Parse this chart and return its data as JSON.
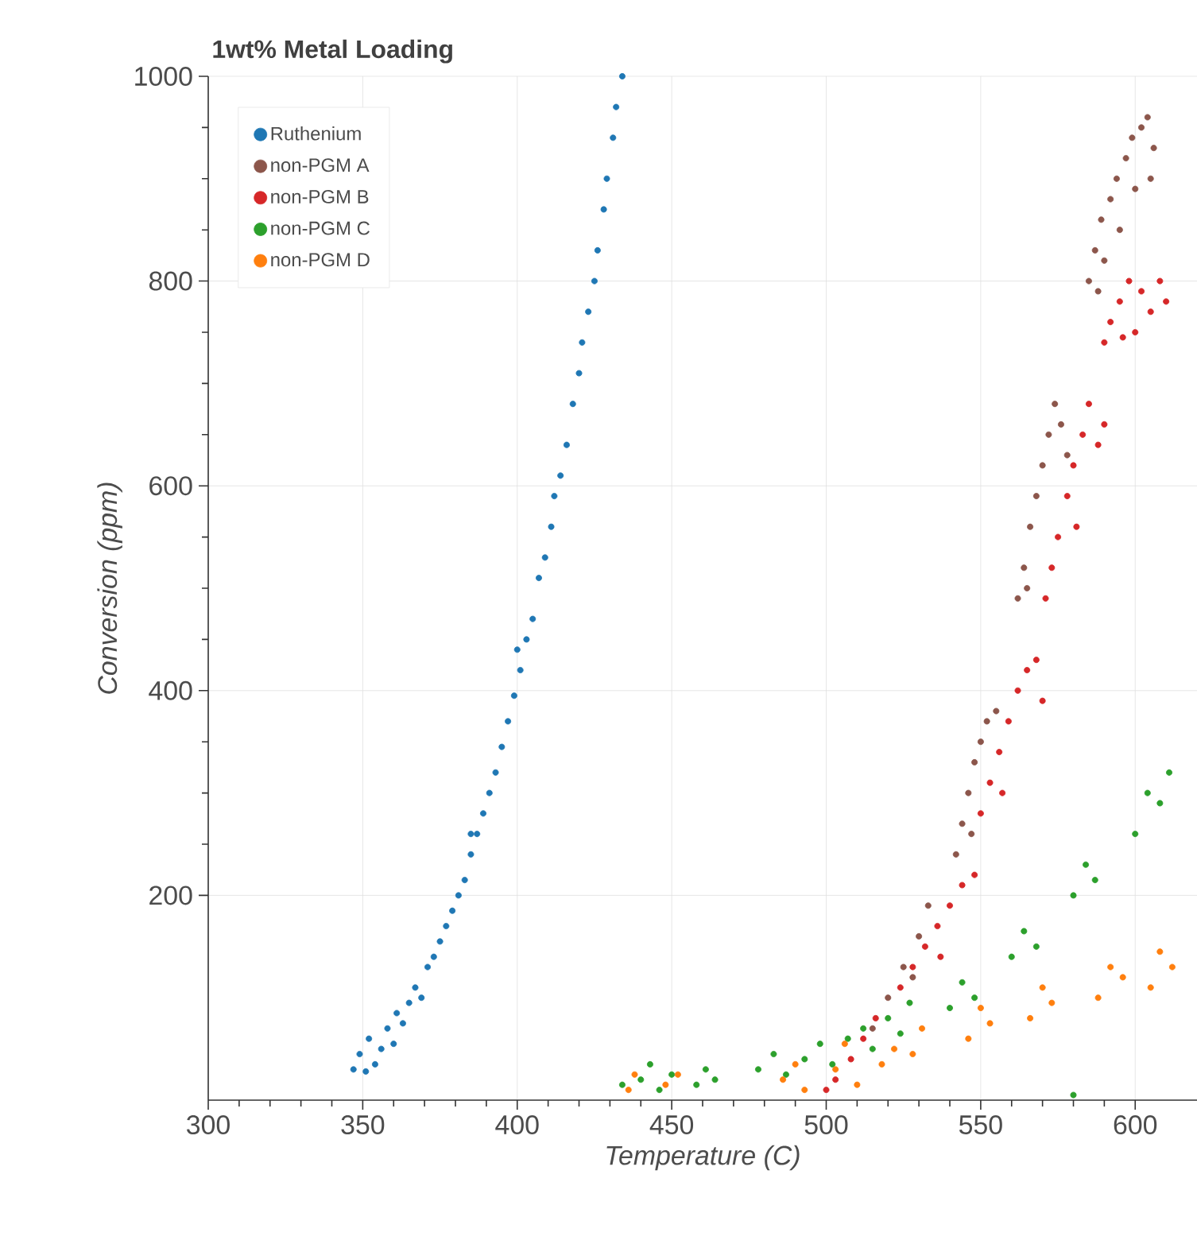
{
  "chart_data": {
    "type": "scatter",
    "title": "1wt% Metal Loading",
    "xlabel": "Temperature (C)",
    "ylabel": "Conversion (ppm)",
    "xlim": [
      300,
      620
    ],
    "ylim": [
      0,
      1000
    ],
    "xticks": [
      300,
      350,
      400,
      450,
      500,
      550,
      600
    ],
    "yticks": [
      200,
      400,
      600,
      800,
      1000
    ],
    "grid": true,
    "legend": "top left",
    "marker": "circle",
    "series": [
      {
        "name": "Ruthenium",
        "color": "#1f77b4",
        "x": [
          347,
          349,
          351,
          352,
          354,
          356,
          358,
          360,
          361,
          363,
          365,
          367,
          369,
          371,
          373,
          375,
          377,
          379,
          381,
          383,
          385,
          387,
          389,
          391,
          393,
          395,
          397,
          399,
          401,
          403,
          405,
          407,
          409,
          411,
          412,
          414,
          416,
          418,
          420,
          421,
          423,
          425,
          426,
          428,
          429,
          431,
          432,
          434,
          400,
          385
        ],
        "values": [
          30,
          45,
          28,
          60,
          35,
          50,
          70,
          55,
          85,
          75,
          95,
          110,
          100,
          130,
          140,
          155,
          170,
          185,
          200,
          215,
          240,
          260,
          280,
          300,
          320,
          345,
          370,
          395,
          420,
          450,
          470,
          510,
          530,
          560,
          590,
          610,
          640,
          680,
          710,
          740,
          770,
          800,
          830,
          870,
          900,
          940,
          970,
          1000,
          440,
          260
        ]
      },
      {
        "name": "non-PGM A",
        "color": "#8c564b",
        "x": [
          585,
          587,
          589,
          590,
          592,
          594,
          595,
          597,
          599,
          600,
          602,
          604,
          606,
          605,
          588,
          562,
          564,
          566,
          568,
          570,
          572,
          574,
          576,
          565,
          578,
          542,
          544,
          546,
          548,
          550,
          552,
          555,
          547,
          515,
          520,
          525,
          530,
          533,
          528
        ],
        "values": [
          800,
          830,
          860,
          820,
          880,
          900,
          850,
          920,
          940,
          890,
          950,
          960,
          930,
          900,
          790,
          490,
          520,
          560,
          590,
          620,
          650,
          680,
          660,
          500,
          630,
          240,
          270,
          300,
          330,
          350,
          370,
          380,
          260,
          70,
          100,
          130,
          160,
          190,
          120
        ]
      },
      {
        "name": "non-PGM B",
        "color": "#d62728",
        "x": [
          590,
          592,
          595,
          598,
          600,
          602,
          605,
          608,
          610,
          596,
          571,
          573,
          575,
          578,
          580,
          583,
          585,
          588,
          590,
          581,
          550,
          553,
          556,
          559,
          562,
          565,
          568,
          570,
          557,
          524,
          528,
          532,
          536,
          540,
          544,
          548,
          537,
          500,
          503,
          508,
          512,
          516
        ],
        "values": [
          740,
          760,
          780,
          800,
          750,
          790,
          770,
          800,
          780,
          745,
          490,
          520,
          550,
          590,
          620,
          650,
          680,
          640,
          660,
          560,
          280,
          310,
          340,
          370,
          400,
          420,
          430,
          390,
          300,
          110,
          130,
          150,
          170,
          190,
          210,
          220,
          140,
          10,
          20,
          40,
          60,
          80
        ]
      },
      {
        "name": "non-PGM C",
        "color": "#2ca02c",
        "x": [
          434,
          440,
          443,
          446,
          450,
          458,
          461,
          464,
          478,
          483,
          487,
          493,
          498,
          502,
          507,
          512,
          515,
          520,
          524,
          527,
          540,
          544,
          548,
          560,
          564,
          568,
          580,
          584,
          587,
          580,
          600,
          604,
          608,
          611
        ],
        "values": [
          15,
          20,
          35,
          10,
          25,
          15,
          30,
          20,
          30,
          45,
          25,
          40,
          55,
          35,
          60,
          70,
          50,
          80,
          65,
          95,
          90,
          115,
          100,
          140,
          165,
          150,
          200,
          230,
          215,
          5,
          260,
          300,
          290,
          320
        ]
      },
      {
        "name": "non-PGM D",
        "color": "#ff7f0e",
        "x": [
          436,
          438,
          448,
          452,
          486,
          490,
          493,
          503,
          506,
          510,
          518,
          522,
          528,
          531,
          546,
          550,
          553,
          566,
          570,
          573,
          588,
          592,
          596,
          605,
          608,
          612
        ],
        "values": [
          10,
          25,
          15,
          25,
          20,
          35,
          10,
          30,
          55,
          15,
          35,
          50,
          45,
          70,
          60,
          90,
          75,
          80,
          110,
          95,
          100,
          130,
          120,
          110,
          145,
          130
        ]
      }
    ]
  }
}
